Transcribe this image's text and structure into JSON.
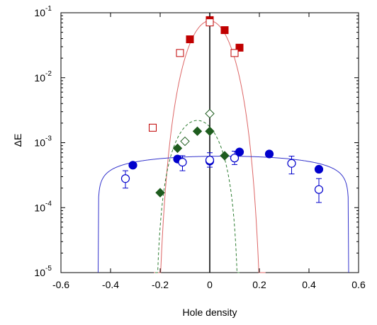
{
  "chart_data": {
    "type": "scatter",
    "xlabel": "Hole  density",
    "ylabel": "ΔE",
    "xlim": [
      -0.6,
      0.6
    ],
    "ylim": [
      1e-05,
      0.1
    ],
    "y_scale": "log",
    "x_ticks": [
      "-0.6",
      "-0.4",
      "-0.2",
      "0",
      "0.2",
      "0.4",
      "0.6"
    ],
    "x_tick_values": [
      -0.6,
      -0.4,
      -0.2,
      0,
      0.2,
      0.4,
      0.6
    ],
    "y_ticks": [
      {
        "base": "10",
        "exp": "-5",
        "value": 1e-05
      },
      {
        "base": "10",
        "exp": "-4",
        "value": 0.0001
      },
      {
        "base": "10",
        "exp": "-3",
        "value": 0.001
      },
      {
        "base": "10",
        "exp": "-2",
        "value": 0.01
      },
      {
        "base": "10",
        "exp": "-1",
        "value": 0.1
      }
    ],
    "grid": false,
    "vertical_line_x": 0,
    "series": [
      {
        "marker": "square-filled",
        "color": "#c00000",
        "points": [
          {
            "x": 0.0,
            "y": 0.077
          },
          {
            "x": -0.08,
            "y": 0.039
          },
          {
            "x": 0.06,
            "y": 0.054
          },
          {
            "x": 0.12,
            "y": 0.029
          }
        ]
      },
      {
        "marker": "square-open",
        "color": "#c00000",
        "points": [
          {
            "x": -0.23,
            "y": 0.0017
          },
          {
            "x": -0.12,
            "y": 0.024
          },
          {
            "x": 0.0,
            "y": 0.071
          },
          {
            "x": 0.1,
            "y": 0.024
          }
        ]
      },
      {
        "marker": "diamond-filled",
        "color": "#1e5c1e",
        "points": [
          {
            "x": -0.2,
            "y": 0.00017
          },
          {
            "x": -0.13,
            "y": 0.00082
          },
          {
            "x": -0.05,
            "y": 0.0015
          },
          {
            "x": 0.0,
            "y": 0.0015
          },
          {
            "x": 0.06,
            "y": 0.00063
          }
        ]
      },
      {
        "marker": "diamond-open",
        "color": "#1e5c1e",
        "points": [
          {
            "x": -0.1,
            "y": 0.00105
          },
          {
            "x": 0.0,
            "y": 0.0028
          }
        ]
      },
      {
        "marker": "circle-filled",
        "color": "#0000cc",
        "points": [
          {
            "x": -0.31,
            "y": 0.00045
          },
          {
            "x": -0.13,
            "y": 0.00056
          },
          {
            "x": 0.0,
            "y": 0.00052
          },
          {
            "x": 0.12,
            "y": 0.00072
          },
          {
            "x": 0.24,
            "y": 0.00067
          },
          {
            "x": 0.44,
            "y": 0.00039
          }
        ]
      },
      {
        "marker": "circle-open",
        "color": "#0000cc",
        "errorbars": true,
        "points": [
          {
            "x": -0.34,
            "y": 0.00028,
            "ylo": 0.0002,
            "yhi": 0.00037
          },
          {
            "x": -0.11,
            "y": 0.0005,
            "ylo": 0.00037,
            "yhi": 0.00063
          },
          {
            "x": 0.0,
            "y": 0.00054,
            "ylo": 0.00042,
            "yhi": 0.0007
          },
          {
            "x": 0.1,
            "y": 0.00058,
            "ylo": 0.00046,
            "yhi": 0.00074
          },
          {
            "x": 0.33,
            "y": 0.00048,
            "ylo": 0.00033,
            "yhi": 0.00062
          },
          {
            "x": 0.44,
            "y": 0.00019,
            "ylo": 0.00012,
            "yhi": 0.00028
          }
        ]
      }
    ],
    "curves": [
      {
        "color": "#dd6666",
        "style": "solid",
        "amplitude": 0.075,
        "x_left": -0.225,
        "x_right": 0.225,
        "exponent": 6
      },
      {
        "color": "#2e7d32",
        "style": "dashed",
        "amplitude": 0.0022,
        "x_left": -0.22,
        "x_right": 0.12,
        "exponent": 2.5
      },
      {
        "color": "#3333cc",
        "style": "solid",
        "amplitude": 0.00062,
        "x_left": -0.45,
        "x_right": 0.56,
        "exponent": 0.3
      }
    ]
  }
}
